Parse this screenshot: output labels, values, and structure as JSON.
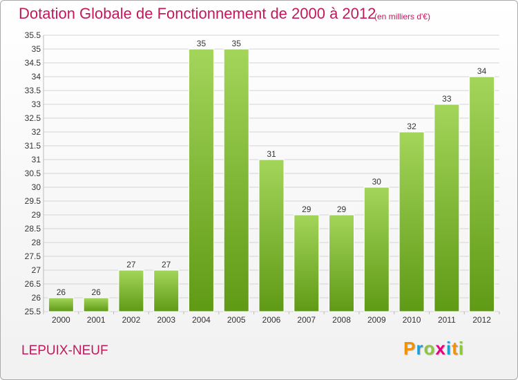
{
  "title": "Dotation Globale de Fonctionnement de 2000 à 2012",
  "subtitle": "(en milliers d'€)",
  "commune": "LEPUIX-NEUF",
  "brand": {
    "letters": [
      "P",
      "r",
      "o",
      "x",
      "i",
      "t",
      "i"
    ],
    "colors": [
      "#f39200",
      "#1a9fd9",
      "#8cc63f",
      "#e6007e",
      "#1a9fd9",
      "#f39200",
      "#8cc63f"
    ]
  },
  "colors": {
    "title": "#c2185b",
    "bar_top": "#a3d55a",
    "bar_bottom": "#5f9a15",
    "grid": "#d4d4d4",
    "axis_text": "#333333"
  },
  "chart_data": {
    "type": "bar",
    "title": "Dotation Globale de Fonctionnement de 2000 à 2012",
    "subtitle": "(en milliers d'€)",
    "categories": [
      "2000",
      "2001",
      "2002",
      "2003",
      "2004",
      "2005",
      "2006",
      "2007",
      "2008",
      "2009",
      "2010",
      "2011",
      "2012"
    ],
    "values": [
      26,
      26,
      27,
      27,
      35,
      35,
      31,
      29,
      29,
      30,
      32,
      33,
      34
    ],
    "data_labels": [
      "26",
      "26",
      "27",
      "27",
      "35",
      "35",
      "31",
      "29",
      "29",
      "30",
      "32",
      "33",
      "34"
    ],
    "ylim": [
      25.5,
      35.5
    ],
    "yticks": [
      "25.5",
      "26",
      "26.5",
      "27",
      "27.5",
      "28",
      "28.5",
      "29",
      "29.5",
      "30",
      "30.5",
      "31",
      "31.5",
      "32",
      "32.5",
      "33",
      "33.5",
      "34",
      "34.5",
      "35",
      "35.5"
    ],
    "xlabel": "",
    "ylabel": "",
    "grid": true,
    "legend": "none"
  }
}
